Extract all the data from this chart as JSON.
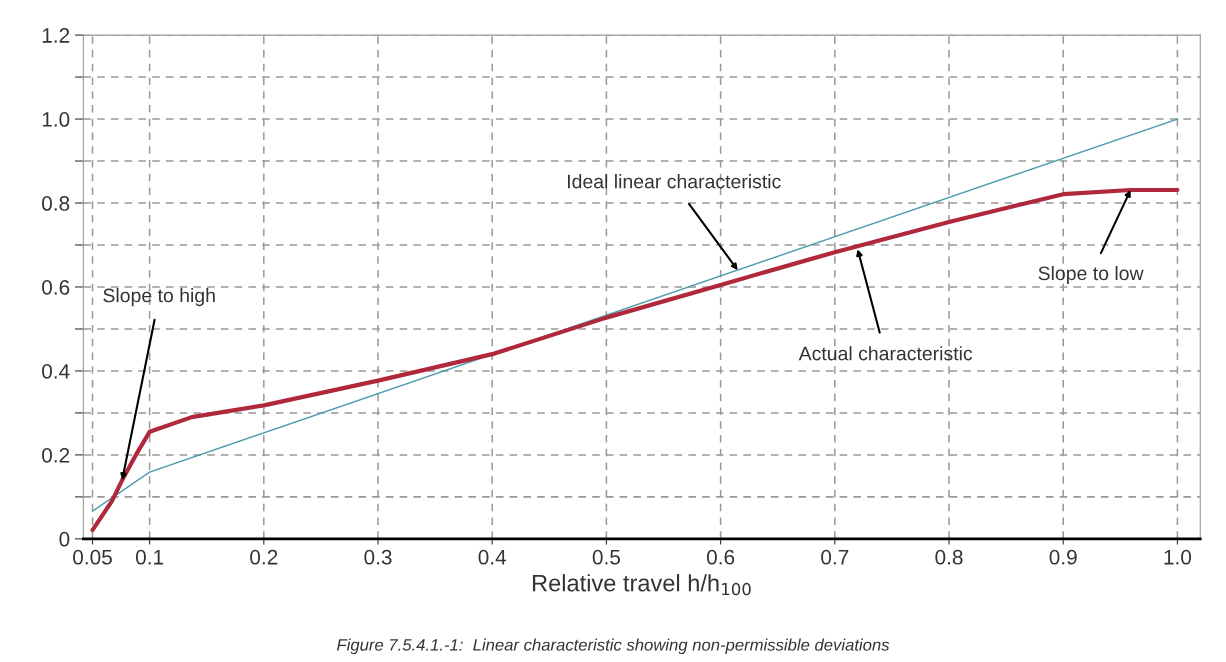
{
  "chart_data": {
    "type": "line",
    "xlabel": "Relative travel h/h$_{100}$",
    "series": [
      {
        "color": "#4a9aab",
        "x": [
          0.05,
          0.1,
          1.0
        ],
        "values": [
          0.066,
          0.159,
          1.0
        ]
      },
      {
        "color": "#b0283c",
        "x": [
          0.05,
          0.067,
          0.076,
          0.088,
          0.1,
          0.137,
          0.2,
          0.3,
          0.4,
          0.5,
          0.6,
          0.7,
          0.8,
          0.9,
          0.959,
          1.0
        ],
        "values": [
          0.021,
          0.09,
          0.14,
          0.2,
          0.255,
          0.29,
          0.318,
          0.377,
          0.44,
          0.527,
          0.605,
          0.683,
          0.755,
          0.821,
          0.831,
          0.831
        ]
      }
    ],
    "xlim": [
      0.042,
      1.02
    ],
    "xticks": [
      {
        "value": 0.05,
        "label": "0.05"
      },
      {
        "value": 0.1,
        "label": "0.1"
      },
      {
        "value": 0.2,
        "label": "0.2"
      },
      {
        "value": 0.3,
        "label": "0.3"
      },
      {
        "value": 0.4,
        "label": "0.4"
      },
      {
        "value": 0.5,
        "label": "0.5"
      },
      {
        "value": 0.6,
        "label": "0.6"
      },
      {
        "value": 0.7,
        "label": "0.7"
      },
      {
        "value": 0.8,
        "label": "0.8"
      },
      {
        "value": 0.9,
        "label": "0.9"
      },
      {
        "value": 1.0,
        "label": "1.0"
      }
    ],
    "ylim": [
      0,
      1.2
    ],
    "yticks": [
      {
        "value": 0,
        "label": "0"
      },
      {
        "value": 0.1,
        "label": null
      },
      {
        "value": 0.2,
        "label": "0.2"
      },
      {
        "value": 0.3,
        "label": null
      },
      {
        "value": 0.4,
        "label": "0.4"
      },
      {
        "value": 0.5,
        "label": null
      },
      {
        "value": 0.6,
        "label": "0.6"
      },
      {
        "value": 0.7,
        "label": null
      },
      {
        "value": 0.8,
        "label": "0.8"
      },
      {
        "value": 0.9,
        "label": null
      },
      {
        "value": 1.0,
        "label": "1.0"
      },
      {
        "value": 1.1,
        "label": null
      },
      {
        "value": 1.2,
        "label": "1.2"
      }
    ],
    "grid": true,
    "marker": "none",
    "line_style": "solid",
    "annotations": [
      {
        "text": "Slope to high",
        "x": 0.076,
        "y": 0.14
      },
      {
        "text": "Ideal linear characteristic",
        "x": 0.615,
        "y": 0.64
      },
      {
        "text": "Actual characteristic",
        "x": 0.72,
        "y": 0.69
      },
      {
        "text": "Slope to low",
        "x": 0.959,
        "y": 0.831
      },
      "Figure 7.5.4.1.-1:  Linear characteristic showing non-permissible deviations"
    ]
  }
}
